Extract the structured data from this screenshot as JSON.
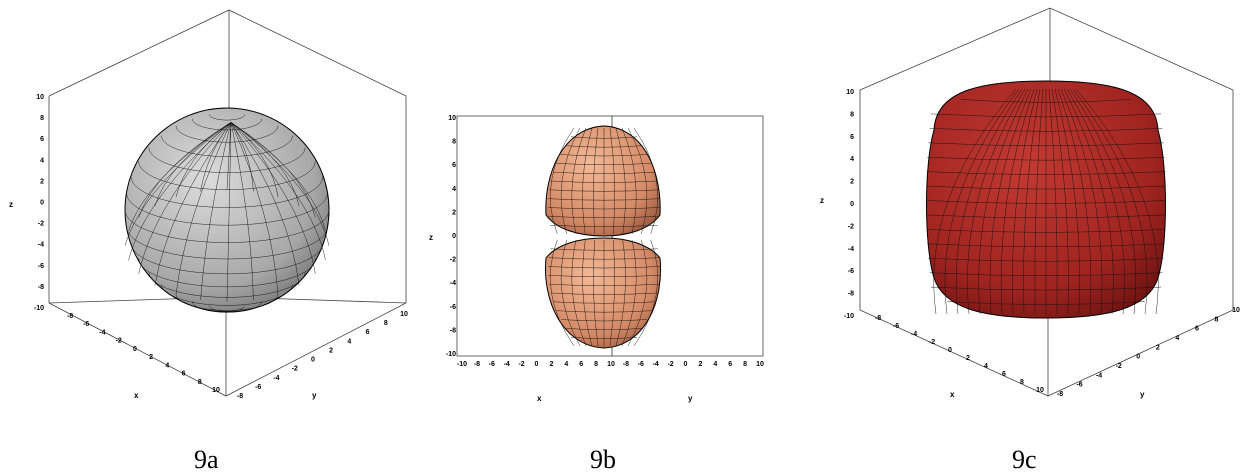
{
  "panels": [
    {
      "id": "9a",
      "caption": "9a",
      "axis_labels": {
        "x": "x",
        "y": "y",
        "z": "z"
      },
      "ticks": {
        "z": [
          "10",
          "8",
          "6",
          "4",
          "2",
          "0",
          "-2",
          "-4",
          "-6",
          "-8",
          "-10"
        ],
        "x": [
          "-8",
          "-6",
          "-4",
          "-2",
          "0",
          "2",
          "4",
          "6",
          "8",
          "10"
        ],
        "y": [
          "10",
          "8",
          "6",
          "4",
          "2",
          "0",
          "-2",
          "-4",
          "-6",
          "-8"
        ]
      },
      "surface_color": "#b8b8b8",
      "shape": "sphere"
    },
    {
      "id": "9b",
      "caption": "9b",
      "axis_labels": {
        "x": "x",
        "y": "y",
        "z": "z"
      },
      "ticks": {
        "z": [
          "10",
          "8",
          "6",
          "4",
          "2",
          "0",
          "-2",
          "-4",
          "-6",
          "-8",
          "-10"
        ],
        "bottom": [
          "-10",
          "-8",
          "-6",
          "-4",
          "-2",
          "0",
          "2",
          "4",
          "6",
          "8",
          "10",
          "-8",
          "-6",
          "-4",
          "-2",
          "0",
          "2",
          "4",
          "6",
          "8",
          "10"
        ]
      },
      "surface_color": "#d9916e",
      "shape": "two-lobes"
    },
    {
      "id": "9c",
      "caption": "9c",
      "axis_labels": {
        "x": "x",
        "y": "y",
        "z": "z"
      },
      "ticks": {
        "z": [
          "10",
          "8",
          "6",
          "4",
          "2",
          "0",
          "-2",
          "-4",
          "-6",
          "-8",
          "-10"
        ],
        "x": [
          "-8",
          "-6",
          "-4",
          "-2",
          "0",
          "2",
          "4",
          "6",
          "8",
          "10"
        ],
        "y": [
          "10",
          "8",
          "6",
          "4",
          "2",
          "0",
          "-2",
          "-4",
          "-6",
          "-8"
        ]
      },
      "surface_color": "#a82622",
      "shape": "rounded-cube"
    }
  ]
}
